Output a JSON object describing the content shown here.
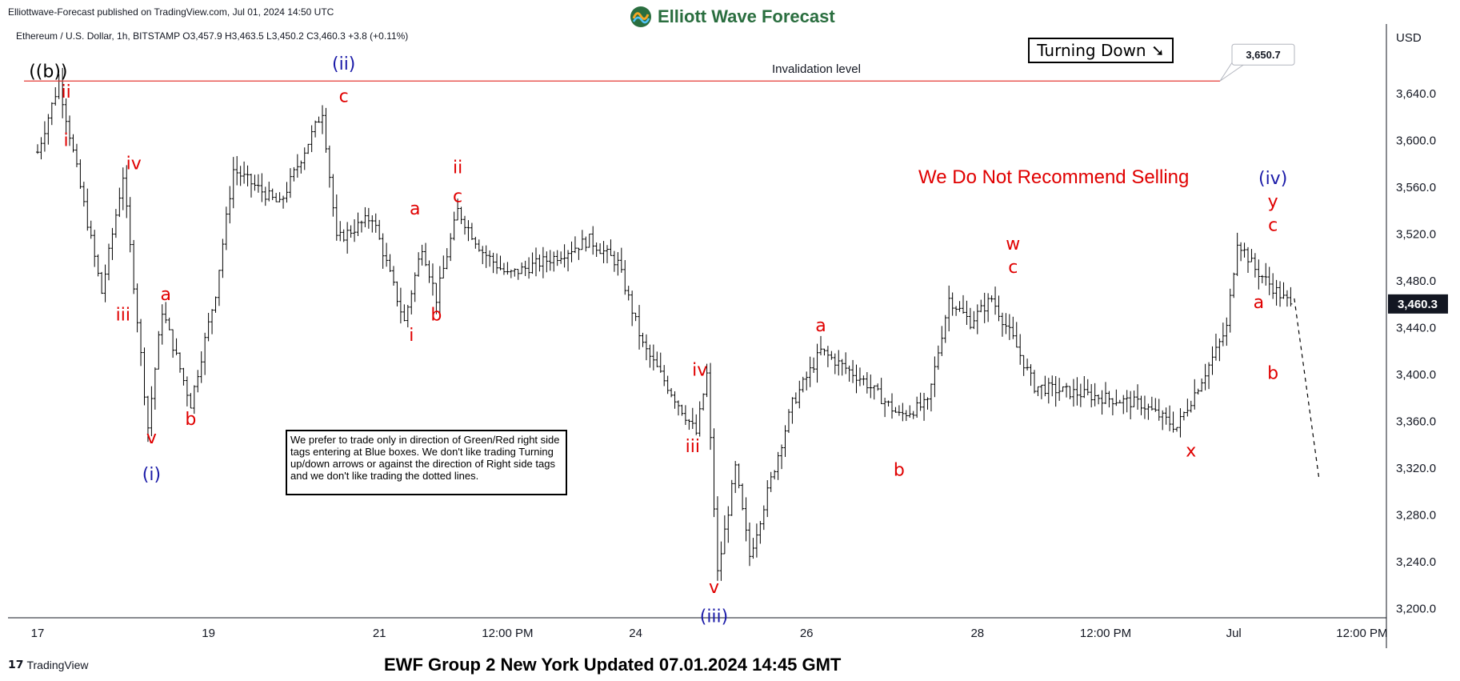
{
  "header": {
    "credit": "Elliottwave-Forecast published on TradingView.com, Jul 01, 2024 14:50 UTC",
    "brand": "Elliott Wave Forecast",
    "symbol_line": "Ethereum / U.S. Dollar, 1h, BITSTAMP  O3,457.9  H3,463.5  L3,450.2  C3,460.3  +3.8 (+0.11%)"
  },
  "footer": {
    "tv_brand": "TradingView",
    "update": "EWF Group 2 New York Updated 07.01.2024 14:45 GMT"
  },
  "colors": {
    "wave_red": "#e00000",
    "wave_blue": "#1a1aa8",
    "invalidation": "#e53935",
    "bars": "#000000",
    "brand_green": "#2a6e3f"
  },
  "chart_data": {
    "type": "ohlc",
    "title": "Ethereum / U.S. Dollar, 1h, BITSTAMP",
    "currency_label": "USD",
    "last_price": "3,460.3",
    "ylim": [
      3180,
      3670
    ],
    "y_ticks": [
      "3,640.0",
      "3,600.0",
      "3,560.0",
      "3,520.0",
      "3,480.0",
      "3,440.0",
      "3,400.0",
      "3,360.0",
      "3,320.0",
      "3,280.0",
      "3,240.0",
      "3,200.0"
    ],
    "y_tick_values": [
      3640,
      3600,
      3560,
      3520,
      3480,
      3440,
      3400,
      3360,
      3320,
      3280,
      3240,
      3200
    ],
    "x_ticks": [
      "17",
      "19",
      "21",
      "12:00 PM",
      "24",
      "26",
      "28",
      "12:00 PM",
      "Jul",
      "12:00 PM"
    ],
    "x_tick_hours": [
      0,
      48,
      96,
      132,
      168,
      216,
      264,
      300,
      336,
      372
    ],
    "price_path": [
      [
        0,
        3590
      ],
      [
        6,
        3650
      ],
      [
        12,
        3560
      ],
      [
        18,
        3470
      ],
      [
        24,
        3570
      ],
      [
        31,
        3355
      ],
      [
        35,
        3455
      ],
      [
        43,
        3375
      ],
      [
        50,
        3470
      ],
      [
        55,
        3575
      ],
      [
        68,
        3545
      ],
      [
        80,
        3625
      ],
      [
        84,
        3515
      ],
      [
        94,
        3535
      ],
      [
        103,
        3445
      ],
      [
        108,
        3510
      ],
      [
        112,
        3465
      ],
      [
        118,
        3540
      ],
      [
        125,
        3505
      ],
      [
        132,
        3485
      ],
      [
        145,
        3500
      ],
      [
        155,
        3515
      ],
      [
        163,
        3495
      ],
      [
        170,
        3425
      ],
      [
        178,
        3385
      ],
      [
        185,
        3350
      ],
      [
        188,
        3400
      ],
      [
        191,
        3230
      ],
      [
        196,
        3320
      ],
      [
        200,
        3245
      ],
      [
        212,
        3375
      ],
      [
        220,
        3420
      ],
      [
        232,
        3395
      ],
      [
        242,
        3365
      ],
      [
        250,
        3375
      ],
      [
        256,
        3465
      ],
      [
        262,
        3445
      ],
      [
        268,
        3465
      ],
      [
        274,
        3430
      ],
      [
        280,
        3390
      ],
      [
        290,
        3385
      ],
      [
        310,
        3375
      ],
      [
        320,
        3355
      ],
      [
        326,
        3390
      ],
      [
        331,
        3420
      ],
      [
        334,
        3440
      ],
      [
        337,
        3515
      ],
      [
        342,
        3490
      ],
      [
        350,
        3465
      ],
      [
        352,
        3460.3
      ]
    ],
    "projection": [
      [
        353,
        3465
      ],
      [
        360,
        3310
      ]
    ],
    "invalidation": {
      "label": "Invalidation level",
      "value": 3650.7,
      "value_label": "3,650.7"
    },
    "wave_labels": [
      {
        "text": "((b))",
        "h": 3,
        "y": 3650,
        "color": "black",
        "dy": -6,
        "size": 22
      },
      {
        "text": "ii",
        "h": 8,
        "y": 3646,
        "color": "red",
        "dy": 14
      },
      {
        "text": "i",
        "h": 8,
        "y": 3606,
        "color": "red",
        "dy": 16
      },
      {
        "text": "iii",
        "h": 24,
        "y": 3460,
        "color": "red",
        "dy": 20
      },
      {
        "text": "iv",
        "h": 27,
        "y": 3570,
        "color": "red",
        "dy": -8
      },
      {
        "text": "v",
        "h": 32,
        "y": 3355,
        "color": "red",
        "dy": 20
      },
      {
        "text": "(i)",
        "h": 32,
        "y": 3325,
        "color": "blue",
        "dy": 22
      },
      {
        "text": "a",
        "h": 36,
        "y": 3458,
        "color": "red",
        "dy": -8
      },
      {
        "text": "b",
        "h": 43,
        "y": 3372,
        "color": "red",
        "dy": 22
      },
      {
        "text": "(ii)",
        "h": 86,
        "y": 3655,
        "color": "blue",
        "dy": -8
      },
      {
        "text": "c",
        "h": 86,
        "y": 3630,
        "color": "red",
        "dy": -4
      },
      {
        "text": "a",
        "h": 106,
        "y": 3530,
        "color": "red",
        "dy": -10
      },
      {
        "text": "i",
        "h": 105,
        "y": 3445,
        "color": "red",
        "dy": 24
      },
      {
        "text": "b",
        "h": 112,
        "y": 3460,
        "color": "red",
        "dy": 20
      },
      {
        "text": "ii",
        "h": 118,
        "y": 3565,
        "color": "red",
        "dy": -10
      },
      {
        "text": "c",
        "h": 118,
        "y": 3542,
        "color": "red",
        "dy": -8
      },
      {
        "text": "iv",
        "h": 186,
        "y": 3395,
        "color": "red",
        "dy": -6
      },
      {
        "text": "iii",
        "h": 184,
        "y": 3350,
        "color": "red",
        "dy": 24
      },
      {
        "text": "v",
        "h": 190,
        "y": 3230,
        "color": "red",
        "dy": 24
      },
      {
        "text": "(iii)",
        "h": 190,
        "y": 3205,
        "color": "blue",
        "dy": 24
      },
      {
        "text": "a",
        "h": 220,
        "y": 3430,
        "color": "red",
        "dy": -10
      },
      {
        "text": "b",
        "h": 242,
        "y": 3330,
        "color": "red",
        "dy": 24
      },
      {
        "text": "w",
        "h": 274,
        "y": 3500,
        "color": "red",
        "dy": -10
      },
      {
        "text": "c",
        "h": 274,
        "y": 3480,
        "color": "red",
        "dy": -10
      },
      {
        "text": "x",
        "h": 324,
        "y": 3345,
        "color": "red",
        "dy": 22
      },
      {
        "text": "a",
        "h": 343,
        "y": 3450,
        "color": "red",
        "dy": -10
      },
      {
        "text": "b",
        "h": 347,
        "y": 3410,
        "color": "red",
        "dy": 20
      },
      {
        "text": "(iv)",
        "h": 347,
        "y": 3560,
        "color": "blue",
        "dy": -4
      },
      {
        "text": "y",
        "h": 347,
        "y": 3540,
        "color": "red",
        "dy": -4
      },
      {
        "text": "c",
        "h": 347,
        "y": 3520,
        "color": "red",
        "dy": -4
      }
    ],
    "annotations": {
      "turning": "Turning Down ➘",
      "warning": "We Do Not Recommend Selling",
      "note": "We prefer to trade only in direction of Green/Red right side tags entering at Blue boxes. We don't like trading Turning up/down arrows or against the direction of Right side tags and we don't like trading the dotted lines."
    }
  }
}
